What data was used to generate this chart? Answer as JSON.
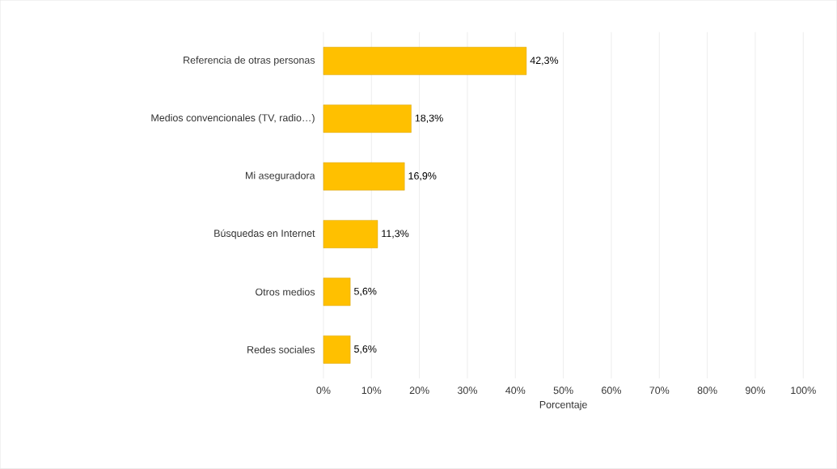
{
  "chart_data": {
    "type": "bar",
    "orientation": "horizontal",
    "xlabel": "Porcentaje",
    "categories": [
      "Referencia de otras personas",
      "Medios convencionales (TV, radio…)",
      "Mi aseguradora",
      "Búsquedas en Internet",
      "Otros medios",
      "Redes sociales"
    ],
    "values": [
      42.3,
      18.3,
      16.9,
      11.3,
      5.6,
      5.6
    ],
    "value_labels": [
      "42,3%",
      "18,3%",
      "16,9%",
      "11,3%",
      "5,6%",
      "5,6%"
    ],
    "color": "#ffc000",
    "xlim": [
      0,
      100
    ],
    "xticks": [
      {
        "value": 0,
        "label": "0%"
      },
      {
        "value": 10,
        "label": "10%"
      },
      {
        "value": 20,
        "label": "20%"
      },
      {
        "value": 30,
        "label": "30%"
      },
      {
        "value": 40,
        "label": "40%"
      },
      {
        "value": 50,
        "label": "50%"
      },
      {
        "value": 60,
        "label": "60%"
      },
      {
        "value": 70,
        "label": "70%"
      },
      {
        "value": 80,
        "label": "80%"
      },
      {
        "value": 90,
        "label": "90%"
      },
      {
        "value": 100,
        "label": "100%"
      }
    ],
    "grid": "x"
  }
}
